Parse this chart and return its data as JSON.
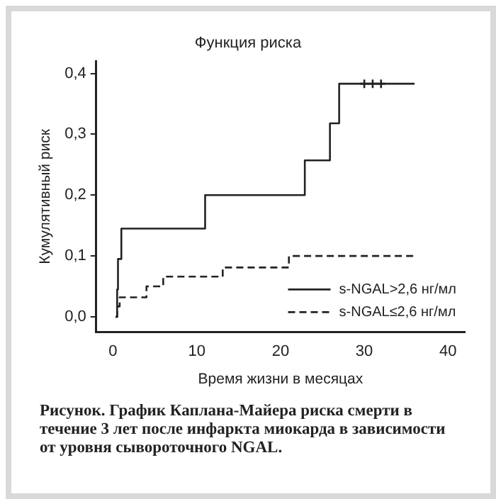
{
  "chart_data": {
    "type": "step",
    "title": "Функция риска",
    "xlabel": "Время жизни в месяцах",
    "ylabel": "Кумулятивный риск",
    "xlim": [
      -2,
      42
    ],
    "xticks": [
      0,
      10,
      20,
      30,
      40
    ],
    "ylim": [
      -0.025,
      0.42
    ],
    "yticks": [
      {
        "value": 0,
        "label": "0,0"
      },
      {
        "value": 0.1,
        "label": "0,1"
      },
      {
        "value": 0.2,
        "label": "0,2"
      },
      {
        "value": 0.3,
        "label": "0,3"
      },
      {
        "value": 0.4,
        "label": "0,4"
      }
    ],
    "grid": false,
    "legend": "bottom right",
    "series": [
      {
        "name": "s-NGAL>2,6 нг/мл",
        "color": "#222222",
        "line_style": "solid",
        "x": [
          0.3,
          0.5,
          0.6,
          1,
          11,
          22.9,
          25.9,
          27,
          36
        ],
        "values": [
          0,
          0.045,
          0.095,
          0.145,
          0.2,
          0.257,
          0.318,
          0.383,
          0.383
        ]
      },
      {
        "name": "s-NGAL≤2,6 нг/мл",
        "color": "#222222",
        "line_style": "dashed",
        "x": [
          0.3,
          0.5,
          0.8,
          4,
          6,
          13.1,
          21,
          36
        ],
        "values": [
          0,
          0.017,
          0.032,
          0.05,
          0.066,
          0.081,
          0.1,
          0.1
        ]
      },
      {
        "type": "scatter",
        "marker": "cross",
        "color": "#222222",
        "x": [
          30,
          31,
          32
        ],
        "values": [
          0.383,
          0.383,
          0.383
        ]
      }
    ],
    "annotations": [
      "Рисунок. График Каплана-Майера риска смерти в течение 3 лет после инфаркта миокарда в зависимости от уровня сывороточного NGAL."
    ]
  }
}
